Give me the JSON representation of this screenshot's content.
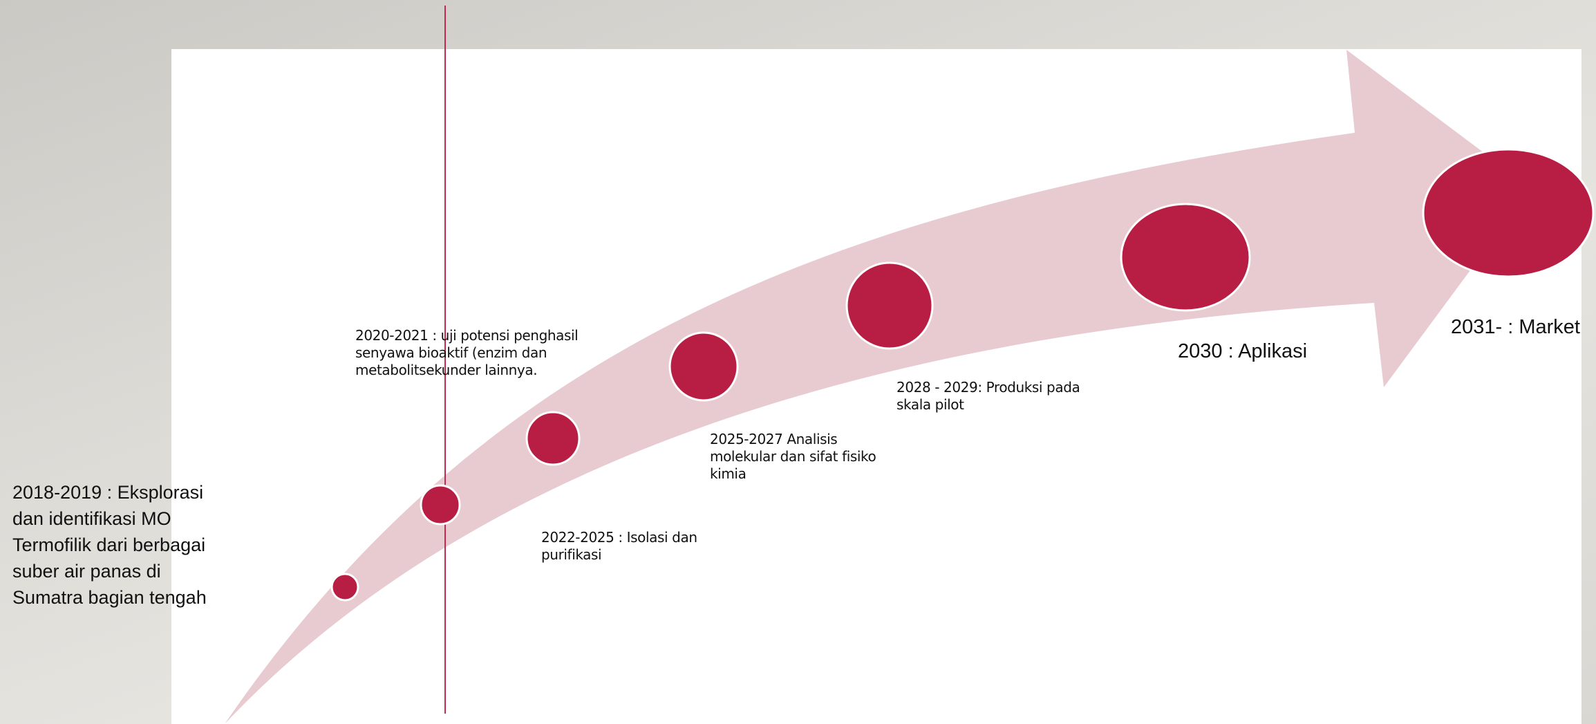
{
  "colors": {
    "arrow_fill": "#e8cbd0",
    "milestone_fill": "#b81e44",
    "milestone_stroke": "#ffffff",
    "vertical_line": "#c4284d"
  },
  "milestones": [
    {
      "label": "2018-2019 : Eksplorasi\ndan identifikasi MO\nTermofilik dari berbagai\nsuber air panas di\nSumatra bagian tengah"
    },
    {
      "label": "2020-2021 : uji potensi penghasil\nsenyawa bioaktif (enzim dan\nmetabolitsekunder lainnya."
    },
    {
      "label": "2022-2025 : Isolasi dan\npurifikasi"
    },
    {
      "label": "2025-2027 Analisis\nmolekular dan sifat fisiko\nkimia"
    },
    {
      "label": "2028 - 2029: Produksi pada\nskala pilot"
    },
    {
      "label": "2030 : Aplikasi"
    },
    {
      "label": "2031- : Market"
    }
  ]
}
